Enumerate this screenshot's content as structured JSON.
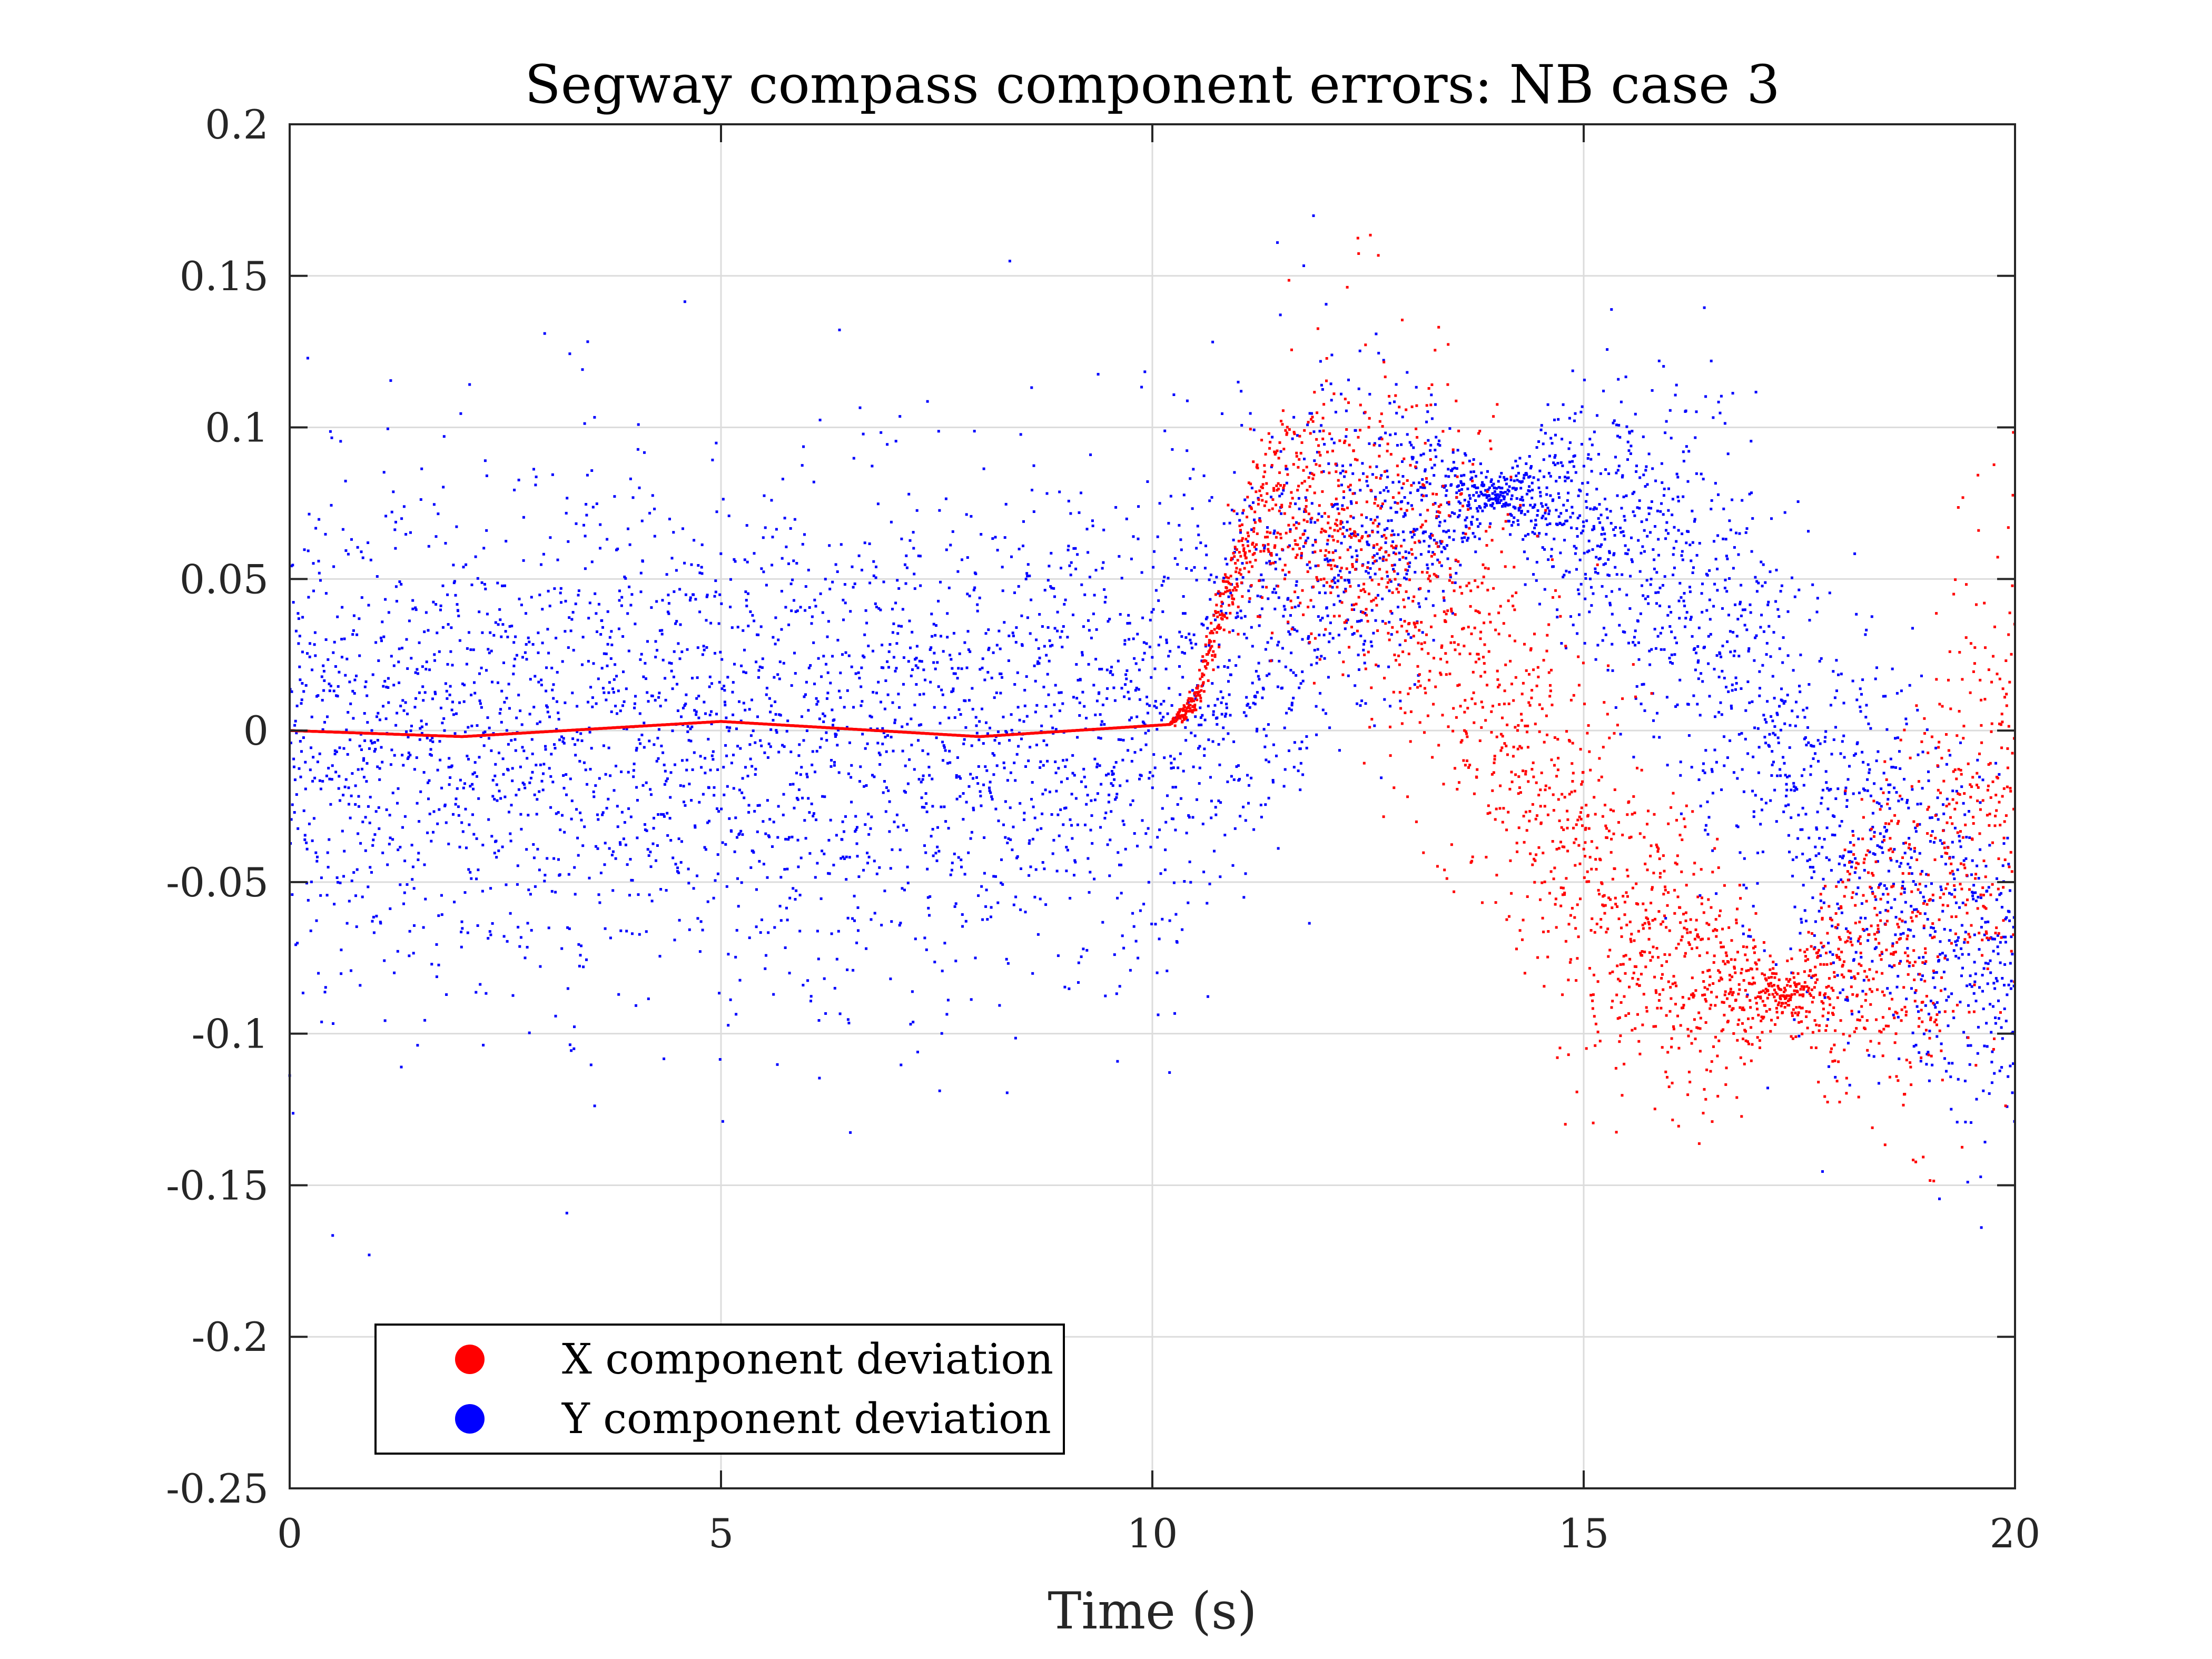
{
  "chart_data": {
    "type": "scatter",
    "title": "Segway compass component errors: NB case 3",
    "xlabel": "Time (s)",
    "ylabel": "",
    "xlim": [
      0,
      20
    ],
    "ylim": [
      -0.25,
      0.2
    ],
    "xticks": [
      0,
      5,
      10,
      15,
      20
    ],
    "xtick_labels": [
      "0",
      "5",
      "10",
      "15",
      "20"
    ],
    "yticks": [
      -0.25,
      -0.2,
      -0.15,
      -0.1,
      -0.05,
      0,
      0.05,
      0.1,
      0.15,
      0.2
    ],
    "ytick_labels": [
      "-0.25",
      "-0.2",
      "-0.15",
      "-0.1",
      "-0.05",
      "0",
      "0.05",
      "0.1",
      "0.15",
      "0.2"
    ],
    "grid": true,
    "legend_position": "bottom-left",
    "series": [
      {
        "name": "X component deviation",
        "color": "#ff0000",
        "marker": "dot",
        "envelope": [
          {
            "t": 0,
            "center": 0.0,
            "spread": 0.0
          },
          {
            "t": 2,
            "center": -0.002,
            "spread": 0.0
          },
          {
            "t": 5,
            "center": 0.003,
            "spread": 0.0
          },
          {
            "t": 8,
            "center": -0.002,
            "spread": 0.0
          },
          {
            "t": 10.2,
            "center": 0.002,
            "spread": 0.0
          },
          {
            "t": 10.5,
            "center": 0.01,
            "spread": 0.004
          },
          {
            "t": 10.8,
            "center": 0.04,
            "spread": 0.008
          },
          {
            "t": 11.1,
            "center": 0.065,
            "spread": 0.015
          },
          {
            "t": 11.5,
            "center": 0.075,
            "spread": 0.025
          },
          {
            "t": 12.5,
            "center": 0.065,
            "spread": 0.04
          },
          {
            "t": 13.5,
            "center": 0.035,
            "spread": 0.045
          },
          {
            "t": 14.5,
            "center": -0.02,
            "spread": 0.045
          },
          {
            "t": 15.5,
            "center": -0.06,
            "spread": 0.04
          },
          {
            "t": 16.5,
            "center": -0.08,
            "spread": 0.03
          },
          {
            "t": 17.3,
            "center": -0.088,
            "spread": 0.003
          },
          {
            "t": 18,
            "center": -0.08,
            "spread": 0.03
          },
          {
            "t": 19,
            "center": -0.055,
            "spread": 0.05
          },
          {
            "t": 20,
            "center": -0.01,
            "spread": 0.06
          }
        ]
      },
      {
        "name": "Y component deviation",
        "color": "#0000ff",
        "marker": "dot",
        "envelope": [
          {
            "t": 0,
            "center": 0.0,
            "spread": 0.055
          },
          {
            "t": 10,
            "center": 0.0,
            "spread": 0.055
          },
          {
            "t": 11.5,
            "center": 0.04,
            "spread": 0.05
          },
          {
            "t": 13,
            "center": 0.07,
            "spread": 0.03
          },
          {
            "t": 14,
            "center": 0.078,
            "spread": 0.003
          },
          {
            "t": 15,
            "center": 0.07,
            "spread": 0.03
          },
          {
            "t": 16.5,
            "center": 0.035,
            "spread": 0.05
          },
          {
            "t": 18,
            "center": -0.035,
            "spread": 0.05
          },
          {
            "t": 20,
            "center": -0.085,
            "spread": 0.035
          }
        ]
      }
    ]
  }
}
